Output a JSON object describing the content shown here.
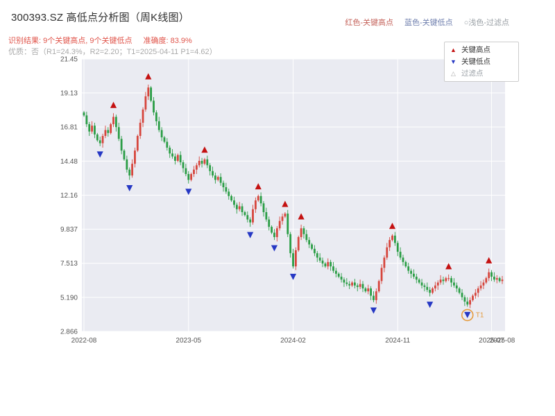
{
  "header": {
    "title": "300393.SZ 高低点分析图（周K线图）",
    "legend_high": "红色-关键高点",
    "legend_low": "蓝色-关键低点",
    "legend_filtered": "○浅色-过滤点",
    "result_text": "识别结果: 9个关键高点, 9个关键低点",
    "accuracy_text": "准确度: 83.9%",
    "quality_text": "优质：否（R1=24.3%，R2=2.20；T1=2025-04-11 P1=4.62）"
  },
  "legend_box": {
    "high_label": "关键高点",
    "low_label": "关键低点",
    "filtered_label": "过滤点"
  },
  "colors": {
    "title_text": "#2f2f2f",
    "header_high": "#c4625a",
    "header_low": "#6f7fae",
    "header_filtered": "#9aa0a6",
    "result_text": "#e0544a",
    "quality_text": "#a9a9a9",
    "axis_text": "#555555",
    "plot_bg": "#eaebf2",
    "grid": "#ffffff",
    "up_candle": "#d6453c",
    "down_candle": "#2a9d45",
    "high_marker": "#c41111",
    "low_marker": "#2638c4",
    "filtered_marker": "#aaaaaa",
    "t1": "#e59a3c"
  },
  "chart_data": {
    "type": "candlestick",
    "symbol": "300393.SZ",
    "interval": "weekly",
    "title": "300393.SZ 高低点分析图（周K线图）",
    "ylim": [
      2.866,
      21.45
    ],
    "y_tick_labels": [
      "21.45",
      "19.13",
      "16.81",
      "14.48",
      "12.16",
      "9.837",
      "7.513",
      "5.190",
      "2.866"
    ],
    "x_ticks": [
      {
        "week": 0,
        "label": "2022-08"
      },
      {
        "week": 39,
        "label": "2023-05"
      },
      {
        "week": 78,
        "label": "2024-02"
      },
      {
        "week": 117,
        "label": "2024-11"
      },
      {
        "week": 152,
        "label": "2025-07"
      }
    ],
    "x_end_label": {
      "week": 156,
      "label": "2025-08"
    },
    "open_first": 17.8,
    "weekly_closes": [
      17.6,
      17.0,
      16.5,
      16.9,
      16.3,
      15.9,
      15.7,
      16.2,
      16.6,
      16.4,
      17.0,
      17.5,
      16.8,
      16.0,
      15.2,
      14.6,
      13.9,
      13.5,
      14.3,
      15.2,
      16.2,
      17.1,
      18.0,
      18.9,
      19.5,
      18.6,
      17.8,
      17.2,
      16.6,
      16.1,
      15.8,
      15.4,
      15.0,
      14.8,
      14.5,
      14.9,
      14.4,
      14.0,
      13.6,
      13.2,
      13.6,
      13.9,
      14.2,
      14.5,
      14.3,
      14.6,
      14.2,
      13.8,
      13.5,
      13.2,
      13.4,
      13.0,
      12.7,
      12.4,
      12.1,
      11.8,
      11.5,
      11.2,
      11.4,
      11.0,
      10.8,
      10.5,
      10.3,
      11.2,
      11.8,
      12.1,
      11.6,
      11.0,
      10.5,
      10.0,
      9.6,
      9.3,
      9.9,
      10.4,
      10.7,
      10.9,
      9.5,
      8.2,
      7.3,
      8.4,
      9.3,
      9.9,
      9.5,
      9.1,
      8.8,
      8.5,
      8.2,
      7.9,
      7.7,
      7.5,
      7.3,
      7.6,
      7.3,
      7.0,
      6.8,
      6.6,
      6.4,
      6.2,
      6.1,
      6.0,
      6.2,
      6.0,
      5.9,
      6.1,
      5.8,
      5.6,
      5.8,
      5.3,
      5.0,
      5.6,
      6.3,
      7.2,
      7.9,
      8.6,
      9.1,
      9.4,
      8.9,
      8.3,
      7.9,
      7.6,
      7.3,
      7.0,
      6.8,
      6.6,
      6.4,
      6.2,
      6.0,
      5.9,
      5.7,
      5.5,
      5.8,
      6.0,
      6.2,
      6.4,
      6.3,
      6.5,
      6.5,
      6.2,
      6.0,
      5.8,
      5.5,
      5.2,
      4.9,
      4.7,
      5.0,
      5.3,
      5.5,
      5.8,
      6.0,
      6.2,
      6.5,
      6.9,
      6.6,
      6.4,
      6.5,
      6.3,
      6.4
    ],
    "key_highs": [
      [
        11,
        17.5
      ],
      [
        24,
        19.5
      ],
      [
        45,
        14.6
      ],
      [
        65,
        12.1
      ],
      [
        75,
        10.9
      ],
      [
        81,
        9.9
      ],
      [
        115,
        9.4
      ],
      [
        136,
        6.5
      ],
      [
        151,
        6.9
      ]
    ],
    "key_lows": [
      [
        6,
        15.7
      ],
      [
        17,
        13.5
      ],
      [
        39,
        13.2
      ],
      [
        62,
        10.3
      ],
      [
        71,
        9.3
      ],
      [
        78,
        7.3
      ],
      [
        108,
        5.0
      ],
      [
        129,
        5.5
      ],
      [
        143,
        4.7
      ]
    ],
    "t1_annotation": {
      "week": 143,
      "price": 4.62,
      "label": "T1",
      "date": "2025-04-11"
    }
  }
}
